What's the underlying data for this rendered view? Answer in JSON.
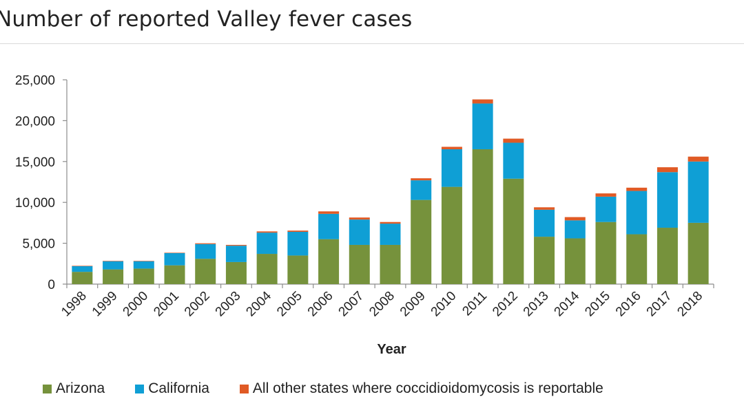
{
  "page": {
    "title": "Number of reported Valley fever cases"
  },
  "chart_data": {
    "type": "bar",
    "stacked": true,
    "title": "Number of reported Valley fever cases",
    "xlabel": "Year",
    "ylabel": "",
    "ylim": [
      0,
      25000
    ],
    "yticks": [
      0,
      5000,
      10000,
      15000,
      20000,
      25000
    ],
    "ytick_labels": [
      "0",
      "5,000",
      "10,000",
      "15,000",
      "20,000",
      "25,000"
    ],
    "grid": false,
    "legend_position": "bottom",
    "categories": [
      "1998",
      "1999",
      "2000",
      "2001",
      "2002",
      "2003",
      "2004",
      "2005",
      "2006",
      "2007",
      "2008",
      "2009",
      "2010",
      "2011",
      "2012",
      "2013",
      "2014",
      "2015",
      "2016",
      "2017",
      "2018"
    ],
    "series": [
      {
        "name": "Arizona",
        "color": "#76923c",
        "values": [
          1500,
          1800,
          1900,
          2300,
          3100,
          2700,
          3700,
          3500,
          5500,
          4800,
          4800,
          10300,
          11900,
          16500,
          12900,
          5800,
          5600,
          7600,
          6100,
          6900,
          7500
        ]
      },
      {
        "name": "California",
        "color": "#0f9fd5",
        "values": [
          700,
          1000,
          900,
          1500,
          1800,
          2000,
          2600,
          2900,
          3100,
          3100,
          2600,
          2400,
          4600,
          5600,
          4400,
          3300,
          2200,
          3100,
          5300,
          6800,
          7500
        ]
      },
      {
        "name": "All other states where coccidioidomycosis is reportable",
        "color": "#e05a25",
        "values": [
          50,
          50,
          50,
          50,
          100,
          100,
          150,
          150,
          300,
          250,
          200,
          250,
          300,
          500,
          500,
          300,
          400,
          400,
          400,
          600,
          600
        ]
      }
    ]
  }
}
